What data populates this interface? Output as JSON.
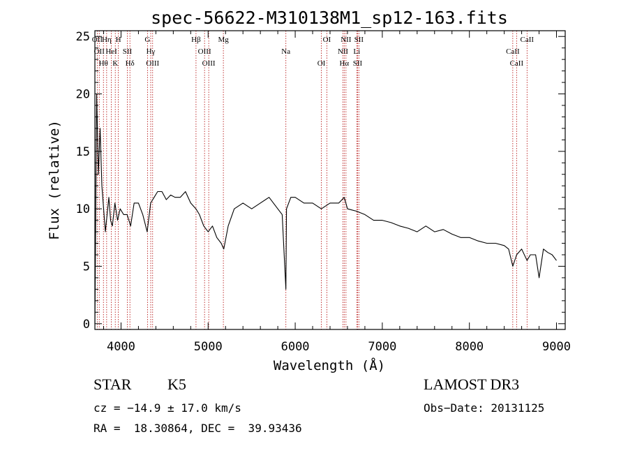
{
  "chart_data": {
    "type": "line",
    "title": "spec-56622-M310138M1_sp12-163.fits",
    "xlabel": "Wavelength (Å)",
    "ylabel": "Flux (relative)",
    "xlim": [
      3700,
      9100
    ],
    "ylim": [
      -0.5,
      25.5
    ],
    "x_ticks": [
      4000,
      5000,
      6000,
      7000,
      8000,
      9000
    ],
    "y_ticks": [
      0,
      5,
      10,
      15,
      20,
      25
    ],
    "series": [
      {
        "name": "flux",
        "x": [
          3700,
          3720,
          3740,
          3760,
          3780,
          3800,
          3820,
          3840,
          3860,
          3880,
          3900,
          3930,
          3960,
          3990,
          4030,
          4070,
          4110,
          4150,
          4200,
          4250,
          4300,
          4340,
          4380,
          4420,
          4470,
          4520,
          4570,
          4620,
          4680,
          4740,
          4800,
          4860,
          4900,
          4950,
          5000,
          5050,
          5100,
          5150,
          5180,
          5230,
          5300,
          5400,
          5500,
          5600,
          5700,
          5800,
          5850,
          5893,
          5900,
          5950,
          6000,
          6100,
          6200,
          6300,
          6400,
          6500,
          6563,
          6600,
          6700,
          6800,
          6900,
          7000,
          7100,
          7200,
          7300,
          7400,
          7500,
          7600,
          7700,
          7800,
          7900,
          8000,
          8100,
          8200,
          8300,
          8400,
          8450,
          8498,
          8542,
          8600,
          8662,
          8700,
          8760,
          8800,
          8850,
          8900,
          8950,
          9000
        ],
        "y": [
          0,
          20,
          13,
          17,
          12,
          10,
          8,
          9.5,
          11,
          9,
          8.5,
          10.5,
          9,
          10,
          9.5,
          9.5,
          8.5,
          10.5,
          10.5,
          9.5,
          8,
          10.5,
          11,
          11.5,
          11.5,
          10.8,
          11.2,
          11,
          11,
          11.5,
          10.5,
          10,
          9.5,
          8.5,
          8,
          8.5,
          7.5,
          7,
          6.5,
          8.5,
          10,
          10.5,
          10,
          10.5,
          11,
          10,
          9.5,
          3,
          10,
          11,
          11,
          10.5,
          10.5,
          10,
          10.5,
          10.5,
          11,
          10,
          9.8,
          9.5,
          9,
          9,
          8.8,
          8.5,
          8.3,
          8,
          8.5,
          8,
          8.2,
          7.8,
          7.5,
          7.5,
          7.2,
          7,
          7,
          6.8,
          6.5,
          5,
          6,
          6.5,
          5.5,
          6,
          6,
          4,
          6.5,
          6.2,
          6,
          5.5
        ]
      }
    ],
    "line_markers": [
      {
        "wave": 3727,
        "label": "OII"
      },
      {
        "wave": 3750,
        "label": "OII"
      },
      {
        "wave": 3798,
        "label": "Hθ"
      },
      {
        "wave": 3835,
        "label": "Hη"
      },
      {
        "wave": 3889,
        "label": "HeI"
      },
      {
        "wave": 3934,
        "label": "K"
      },
      {
        "wave": 3969,
        "label": "H"
      },
      {
        "wave": 4072,
        "label": "SII"
      },
      {
        "wave": 4102,
        "label": "Hδ"
      },
      {
        "wave": 4304,
        "label": "G"
      },
      {
        "wave": 4341,
        "label": "Hγ"
      },
      {
        "wave": 4363,
        "label": "OIII"
      },
      {
        "wave": 4861,
        "label": "Hβ"
      },
      {
        "wave": 4959,
        "label": "OIII"
      },
      {
        "wave": 5007,
        "label": "OIII"
      },
      {
        "wave": 5175,
        "label": "Mg"
      },
      {
        "wave": 5893,
        "label": "Na"
      },
      {
        "wave": 6300,
        "label": "OI"
      },
      {
        "wave": 6363,
        "label": "OI"
      },
      {
        "wave": 6548,
        "label": "NII"
      },
      {
        "wave": 6563,
        "label": "Hα"
      },
      {
        "wave": 6583,
        "label": "NII"
      },
      {
        "wave": 6707,
        "label": "Li"
      },
      {
        "wave": 6716,
        "label": "SII"
      },
      {
        "wave": 6731,
        "label": "SII"
      },
      {
        "wave": 8498,
        "label": "CaII"
      },
      {
        "wave": 8542,
        "label": "CaII"
      },
      {
        "wave": 8662,
        "label": "CaII"
      }
    ]
  },
  "info": {
    "object_class": "STAR",
    "subclass": "K5",
    "survey": "LAMOST DR3",
    "redshift_line": "cz = −14.9 ± 17.0 km/s",
    "obs_date_line": "Obs−Date: 20131125",
    "coords_line": "RA =  18.30864, DEC =  39.93436"
  }
}
